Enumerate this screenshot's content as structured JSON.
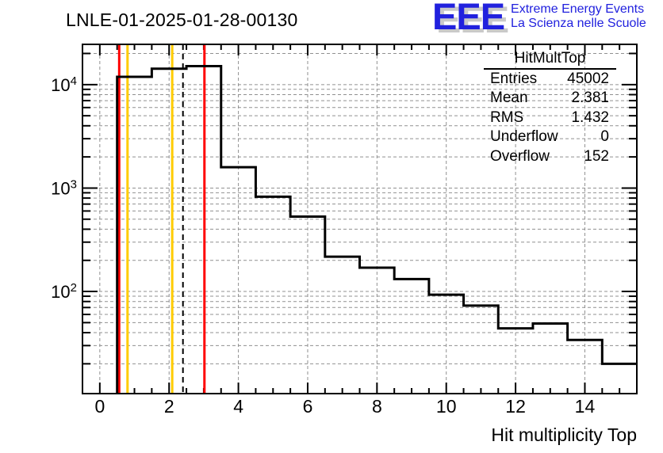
{
  "header": {
    "title": "LNLE-01-2025-01-28-00130"
  },
  "logo": {
    "acronym": "EEE",
    "line1": "Extreme Energy Events",
    "line2": "La Scienza nelle Scuole",
    "color": "#2121de",
    "shadow_color": "#c9c9c9"
  },
  "stats": {
    "title": "HitMultTop",
    "rows": [
      {
        "label": "Entries",
        "value": "45002"
      },
      {
        "label": "Mean",
        "value": "2.381"
      },
      {
        "label": "RMS",
        "value": "1.432"
      },
      {
        "label": "Underflow",
        "value": "0"
      },
      {
        "label": "Overflow",
        "value": "152"
      }
    ]
  },
  "chart_data": {
    "type": "bar",
    "subtype": "step-histogram",
    "title": "LNLE-01-2025-01-28-00130",
    "xlabel": "Hit multiplicity Top",
    "ylabel": "",
    "y_scale": "log",
    "grid": true,
    "xlim": [
      -0.5,
      15.5
    ],
    "ylim": [
      10.3,
      24500
    ],
    "bin_width": 1,
    "bin_centers": [
      0,
      1,
      2,
      3,
      4,
      5,
      6,
      7,
      8,
      9,
      10,
      11,
      12,
      13,
      14,
      15
    ],
    "values": [
      0,
      11900,
      14250,
      15100,
      1590,
      825,
      530,
      217,
      170,
      132,
      93,
      73,
      44,
      49,
      34,
      20
    ],
    "x_major_ticks": [
      0,
      2,
      4,
      6,
      8,
      10,
      12,
      14
    ],
    "x_minor_step": 0.5,
    "y_label_exponents": [
      2,
      3,
      4
    ],
    "reference_lines": [
      {
        "x": 0.56,
        "color": "#ff0000",
        "style": "solid"
      },
      {
        "x": 0.8,
        "color": "#ffcc00",
        "style": "solid"
      },
      {
        "x": 2.09,
        "color": "#ffcc00",
        "style": "solid"
      },
      {
        "x": 2.4,
        "color": "#000000",
        "style": "dashed"
      },
      {
        "x": 3.02,
        "color": "#ff0000",
        "style": "solid"
      }
    ],
    "line_color": "#000000",
    "grid_color": "#909090",
    "frame_color": "#000000"
  }
}
